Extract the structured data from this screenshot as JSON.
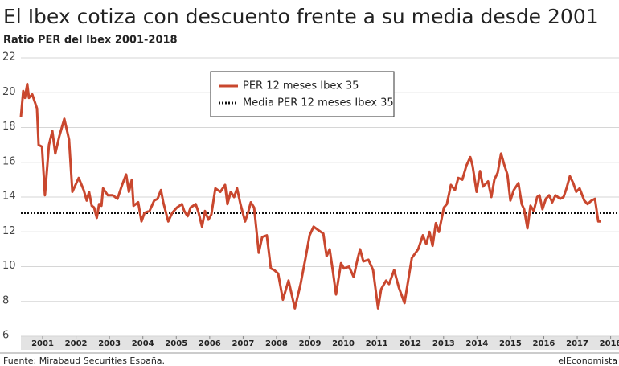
{
  "chart_data": {
    "type": "line",
    "title": "El Ibex cotiza con descuento frente a su media desde 2001",
    "subtitle": "Ratio PER del Ibex 2001-2018",
    "source": "Fuente: Mirabaud Securities España.",
    "brand": "elEconomista",
    "xlim": [
      2000.85,
      2018.75
    ],
    "xticks": [
      {
        "value": 2001.5,
        "label": "2001"
      },
      {
        "value": 2002.5,
        "label": "2002"
      },
      {
        "value": 2003.5,
        "label": "2003"
      },
      {
        "value": 2004.5,
        "label": "2004"
      },
      {
        "value": 2005.5,
        "label": "2005"
      },
      {
        "value": 2006.5,
        "label": "2006"
      },
      {
        "value": 2007.5,
        "label": "2007"
      },
      {
        "value": 2008.5,
        "label": "2008"
      },
      {
        "value": 2009.5,
        "label": "2009"
      },
      {
        "value": 2010.5,
        "label": "2010"
      },
      {
        "value": 2011.5,
        "label": "2011"
      },
      {
        "value": 2012.5,
        "label": "2012"
      },
      {
        "value": 2013.5,
        "label": "2013"
      },
      {
        "value": 2014.5,
        "label": "2014"
      },
      {
        "value": 2015.5,
        "label": "2015"
      },
      {
        "value": 2016.5,
        "label": "2016"
      },
      {
        "value": 2017.5,
        "label": "2017"
      },
      {
        "value": 2018.5,
        "label": "2018"
      }
    ],
    "ylim": [
      6,
      22
    ],
    "yticks": [
      6,
      8,
      10,
      12,
      14,
      16,
      18,
      20,
      22
    ],
    "grid": true,
    "series": [
      {
        "name": "PER 12 meses Ibex 35",
        "color": "#c9472e",
        "x": [
          2000.85,
          2000.92,
          2000.97,
          2001.04,
          2001.09,
          2001.19,
          2001.33,
          2001.38,
          2001.48,
          2001.57,
          2001.69,
          2001.79,
          2001.88,
          2002.0,
          2002.15,
          2002.29,
          2002.39,
          2002.58,
          2002.73,
          2002.82,
          2002.89,
          2002.97,
          2003.04,
          2003.12,
          2003.19,
          2003.26,
          2003.31,
          2003.45,
          2003.6,
          2003.74,
          2003.88,
          2004.0,
          2004.08,
          2004.17,
          2004.22,
          2004.36,
          2004.46,
          2004.55,
          2004.7,
          2004.84,
          2004.94,
          2005.04,
          2005.11,
          2005.26,
          2005.38,
          2005.52,
          2005.67,
          2005.74,
          2005.84,
          2005.93,
          2006.08,
          2006.17,
          2006.27,
          2006.36,
          2006.46,
          2006.55,
          2006.67,
          2006.82,
          2006.96,
          2007.03,
          2007.13,
          2007.23,
          2007.32,
          2007.42,
          2007.56,
          2007.66,
          2007.73,
          2007.83,
          2007.97,
          2008.07,
          2008.21,
          2008.33,
          2008.43,
          2008.55,
          2008.69,
          2008.86,
          2009.05,
          2009.22,
          2009.37,
          2009.49,
          2009.61,
          2009.75,
          2009.9,
          2010.0,
          2010.09,
          2010.19,
          2010.28,
          2010.43,
          2010.52,
          2010.67,
          2010.81,
          2010.91,
          2011.0,
          2011.1,
          2011.25,
          2011.39,
          2011.54,
          2011.63,
          2011.78,
          2011.87,
          2012.02,
          2012.16,
          2012.33,
          2012.55,
          2012.74,
          2012.88,
          2012.98,
          2013.08,
          2013.17,
          2013.27,
          2013.36,
          2013.51,
          2013.6,
          2013.72,
          2013.84,
          2013.94,
          2014.06,
          2014.18,
          2014.3,
          2014.37,
          2014.49,
          2014.59,
          2014.68,
          2014.83,
          2014.93,
          2015.02,
          2015.12,
          2015.22,
          2015.31,
          2015.41,
          2015.5,
          2015.6,
          2015.74,
          2015.84,
          2015.91,
          2016.01,
          2016.1,
          2016.2,
          2016.3,
          2016.37,
          2016.46,
          2016.56,
          2016.66,
          2016.75,
          2016.85,
          2016.99,
          2017.09,
          2017.18,
          2017.28,
          2017.38,
          2017.47,
          2017.57,
          2017.71,
          2017.81,
          2017.93,
          2018.03,
          2018.13,
          2018.22
        ],
        "values": [
          18.6,
          20.1,
          19.7,
          20.5,
          19.7,
          19.9,
          19.1,
          17.0,
          16.9,
          14.1,
          17.0,
          17.8,
          16.5,
          17.5,
          18.5,
          17.3,
          14.3,
          15.1,
          14.4,
          13.8,
          14.3,
          13.5,
          13.4,
          12.8,
          13.6,
          13.5,
          14.5,
          14.1,
          14.1,
          13.9,
          14.7,
          15.3,
          14.3,
          15.0,
          13.5,
          13.7,
          12.6,
          13.1,
          13.2,
          13.8,
          13.9,
          14.4,
          13.7,
          12.6,
          13.1,
          13.4,
          13.6,
          13.2,
          12.9,
          13.4,
          13.6,
          13.1,
          12.3,
          13.2,
          12.7,
          13.0,
          14.5,
          14.3,
          14.7,
          13.6,
          14.3,
          14.0,
          14.5,
          13.6,
          12.6,
          13.2,
          13.7,
          13.4,
          10.8,
          11.7,
          11.8,
          9.9,
          9.8,
          9.6,
          8.1,
          9.2,
          7.6,
          9.0,
          10.5,
          11.8,
          12.3,
          12.1,
          11.9,
          10.6,
          11.0,
          9.7,
          8.4,
          10.2,
          9.9,
          10.0,
          9.4,
          10.3,
          11.0,
          10.3,
          10.4,
          9.8,
          7.6,
          8.7,
          9.2,
          9.0,
          9.8,
          8.8,
          7.9,
          10.5,
          11.0,
          11.8,
          11.3,
          12.0,
          11.2,
          12.5,
          12.0,
          13.4,
          13.6,
          14.7,
          14.4,
          15.1,
          15.0,
          15.8,
          16.3,
          15.8,
          14.3,
          15.5,
          14.6,
          14.9,
          14.0,
          15.0,
          15.4,
          16.5,
          15.9,
          15.3,
          13.8,
          14.4,
          14.8,
          13.6,
          13.3,
          12.2,
          13.5,
          13.2,
          14.0,
          14.1,
          13.3,
          13.9,
          14.1,
          13.7,
          14.1,
          13.9,
          14.0,
          14.5,
          15.2,
          14.8,
          14.3,
          14.5,
          13.8,
          13.6,
          13.8,
          13.9,
          12.6,
          12.6
        ]
      }
    ],
    "reference_line": {
      "name": "Media PER 12 meses Ibex 35",
      "value": 13.1,
      "color": "#111111",
      "style": "dotted"
    }
  }
}
